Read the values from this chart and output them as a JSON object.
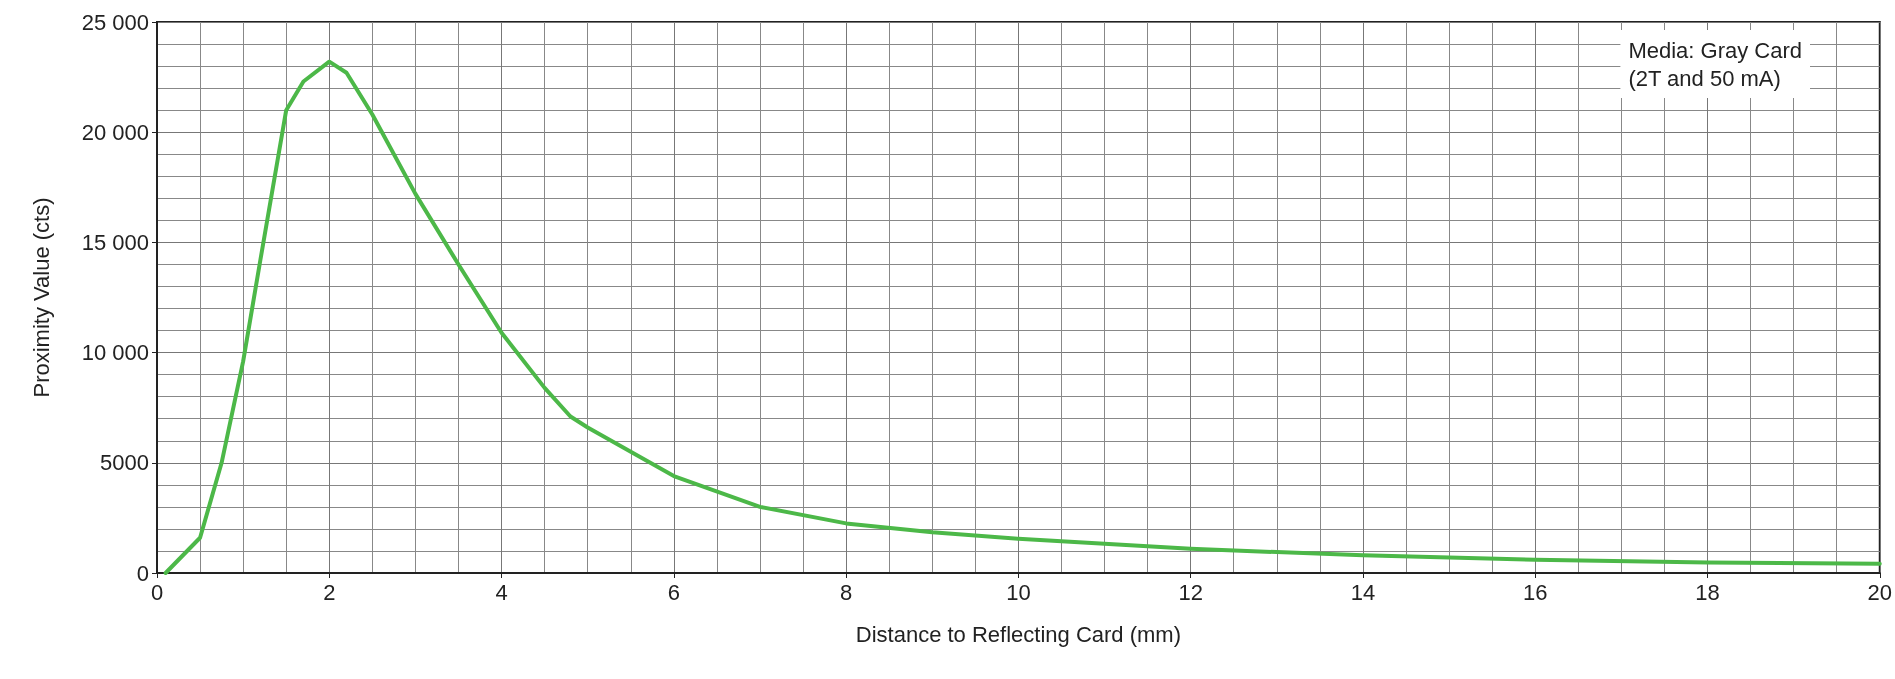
{
  "chart_data": {
    "type": "line",
    "xlabel": "Distance to Reflecting Card (mm)",
    "ylabel": "Proximity Value (cts)",
    "annotations": [
      "Media: Gray Card\n(2T and 50 mA)"
    ],
    "x": [
      0.1,
      0.5,
      0.75,
      1.0,
      1.2,
      1.5,
      1.7,
      2.0,
      2.2,
      2.5,
      3.0,
      3.5,
      4.0,
      4.5,
      4.8,
      5.0,
      6.0,
      7.0,
      8.0,
      9.0,
      10,
      12,
      14,
      16,
      18,
      20
    ],
    "series": [
      {
        "color": "#4cb848",
        "values": [
          0,
          1600,
          5000,
          9600,
          14200,
          21000,
          22300,
          23200,
          22700,
          20800,
          17200,
          14000,
          10900,
          8400,
          7100,
          6600,
          4400,
          3000,
          2250,
          1850,
          1550,
          1100,
          800,
          600,
          480,
          420
        ]
      }
    ],
    "xlim": [
      0,
      20
    ],
    "xticks": [
      0,
      2,
      4,
      6,
      8,
      10,
      12,
      14,
      16,
      18,
      20
    ],
    "ylim": [
      0,
      25000
    ],
    "yticks": [
      0,
      5000,
      {
        "value": 10000,
        "label": "10 000"
      },
      {
        "value": 15000,
        "label": "15 000"
      },
      {
        "value": 20000,
        "label": "20 000"
      },
      {
        "value": 25000,
        "label": "25 000"
      }
    ],
    "grid": true,
    "marker": "none",
    "line_style": "solid"
  }
}
